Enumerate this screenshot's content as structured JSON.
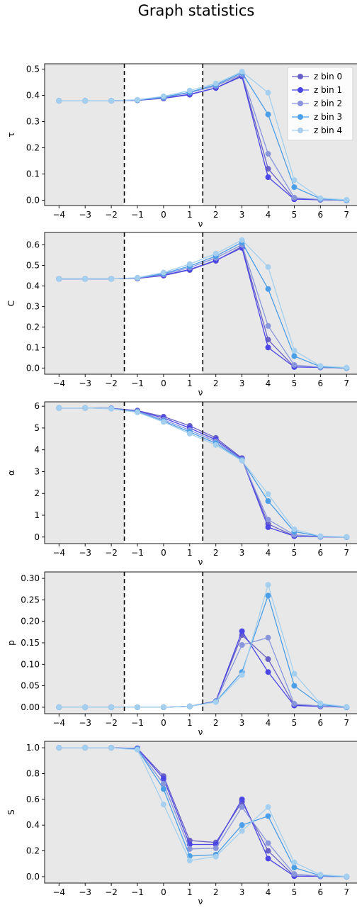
{
  "title": "Graph statistics",
  "chart_data": [
    {
      "type": "line",
      "ylabel": "τ",
      "xlabel": "ν",
      "x": [
        -4,
        -3,
        -2,
        -1,
        0,
        1,
        2,
        3,
        4,
        5,
        6,
        7
      ],
      "xticks": [
        "−4",
        "−3",
        "−2",
        "−1",
        "0",
        "1",
        "2",
        "3",
        "4",
        "5",
        "6",
        "7"
      ],
      "ylim": [
        -0.02,
        0.52
      ],
      "yticks": [
        0.0,
        0.1,
        0.2,
        0.3,
        0.4,
        0.5
      ],
      "ytick_labels": [
        "0.0",
        "0.1",
        "0.2",
        "0.3",
        "0.4",
        "0.5"
      ],
      "legend": "top-right",
      "series": [
        {
          "name": "z bin 0",
          "values": [
            0.379,
            0.379,
            0.379,
            0.381,
            0.388,
            0.402,
            0.428,
            0.476,
            0.12,
            0.005,
            0.002,
            0.0
          ]
        },
        {
          "name": "z bin 1",
          "values": [
            0.379,
            0.379,
            0.379,
            0.381,
            0.389,
            0.404,
            0.428,
            0.472,
            0.088,
            0.004,
            0.002,
            0.0
          ]
        },
        {
          "name": "z bin 2",
          "values": [
            0.379,
            0.379,
            0.379,
            0.382,
            0.391,
            0.41,
            0.436,
            0.48,
            0.177,
            0.01,
            0.003,
            0.0
          ]
        },
        {
          "name": "z bin 3",
          "values": [
            0.379,
            0.379,
            0.379,
            0.382,
            0.393,
            0.412,
            0.44,
            0.486,
            0.327,
            0.05,
            0.006,
            0.0
          ]
        },
        {
          "name": "z bin 4",
          "values": [
            0.379,
            0.379,
            0.379,
            0.383,
            0.396,
            0.418,
            0.445,
            0.49,
            0.41,
            0.077,
            0.008,
            0.002
          ]
        }
      ]
    },
    {
      "type": "line",
      "ylabel": "C",
      "xlabel": "ν",
      "x": [
        -4,
        -3,
        -2,
        -1,
        0,
        1,
        2,
        3,
        4,
        5,
        6,
        7
      ],
      "xticks": [
        "−4",
        "−3",
        "−2",
        "−1",
        "0",
        "1",
        "2",
        "3",
        "4",
        "5",
        "6",
        "7"
      ],
      "ylim": [
        -0.03,
        0.66
      ],
      "yticks": [
        0.0,
        0.1,
        0.2,
        0.3,
        0.4,
        0.5,
        0.6
      ],
      "ytick_labels": [
        "0.0",
        "0.1",
        "0.2",
        "0.3",
        "0.4",
        "0.5",
        "0.6"
      ],
      "series": [
        {
          "name": "z bin 0",
          "values": [
            0.434,
            0.434,
            0.434,
            0.436,
            0.45,
            0.477,
            0.522,
            0.592,
            0.138,
            0.006,
            0.003,
            0.0
          ]
        },
        {
          "name": "z bin 1",
          "values": [
            0.434,
            0.434,
            0.434,
            0.437,
            0.452,
            0.48,
            0.524,
            0.585,
            0.1,
            0.005,
            0.003,
            0.0
          ]
        },
        {
          "name": "z bin 2",
          "values": [
            0.434,
            0.434,
            0.434,
            0.438,
            0.456,
            0.489,
            0.536,
            0.6,
            0.205,
            0.015,
            0.004,
            0.0
          ]
        },
        {
          "name": "z bin 3",
          "values": [
            0.434,
            0.434,
            0.434,
            0.439,
            0.46,
            0.496,
            0.545,
            0.612,
            0.385,
            0.058,
            0.007,
            0.0
          ]
        },
        {
          "name": "z bin 4",
          "values": [
            0.434,
            0.434,
            0.434,
            0.44,
            0.465,
            0.506,
            0.557,
            0.623,
            0.492,
            0.085,
            0.01,
            0.002
          ]
        }
      ]
    },
    {
      "type": "line",
      "ylabel": "α",
      "xlabel": "ν",
      "x": [
        -4,
        -3,
        -2,
        -1,
        0,
        1,
        2,
        3,
        4,
        5,
        6,
        7
      ],
      "xticks": [
        "−4",
        "−3",
        "−2",
        "−1",
        "0",
        "1",
        "2",
        "3",
        "4",
        "5",
        "6",
        "7"
      ],
      "ylim": [
        -0.3,
        6.2
      ],
      "yticks": [
        0,
        1,
        2,
        3,
        4,
        5,
        6
      ],
      "ytick_labels": [
        "0",
        "1",
        "2",
        "3",
        "4",
        "5",
        "6"
      ],
      "series": [
        {
          "name": "z bin 0",
          "values": [
            5.92,
            5.92,
            5.9,
            5.8,
            5.52,
            5.1,
            4.55,
            3.62,
            0.6,
            0.05,
            0.01,
            0.0
          ]
        },
        {
          "name": "z bin 1",
          "values": [
            5.92,
            5.92,
            5.9,
            5.78,
            5.46,
            5.0,
            4.46,
            3.58,
            0.45,
            0.04,
            0.01,
            0.0
          ]
        },
        {
          "name": "z bin 2",
          "values": [
            5.92,
            5.92,
            5.89,
            5.76,
            5.38,
            4.9,
            4.38,
            3.55,
            0.8,
            0.1,
            0.02,
            0.0
          ]
        },
        {
          "name": "z bin 3",
          "values": [
            5.92,
            5.92,
            5.89,
            5.74,
            5.32,
            4.82,
            4.3,
            3.52,
            1.65,
            0.25,
            0.03,
            0.0
          ]
        },
        {
          "name": "z bin 4",
          "values": [
            5.92,
            5.92,
            5.88,
            5.72,
            5.28,
            4.74,
            4.22,
            3.5,
            1.97,
            0.35,
            0.04,
            0.01
          ]
        }
      ]
    },
    {
      "type": "line",
      "ylabel": "p",
      "xlabel": "ν",
      "x": [
        -4,
        -3,
        -2,
        -1,
        0,
        1,
        2,
        3,
        4,
        5,
        6,
        7
      ],
      "xticks": [
        "−4",
        "−3",
        "−2",
        "−1",
        "0",
        "1",
        "2",
        "3",
        "4",
        "5",
        "6",
        "7"
      ],
      "ylim": [
        -0.015,
        0.315
      ],
      "yticks": [
        0.0,
        0.05,
        0.1,
        0.15,
        0.2,
        0.25,
        0.3
      ],
      "ytick_labels": [
        "0.00",
        "0.05",
        "0.10",
        "0.15",
        "0.20",
        "0.25",
        "0.30"
      ],
      "series": [
        {
          "name": "z bin 0",
          "values": [
            0.0,
            0.0,
            0.0,
            0.0,
            0.0,
            0.002,
            0.014,
            0.168,
            0.112,
            0.005,
            0.002,
            0.0
          ]
        },
        {
          "name": "z bin 1",
          "values": [
            0.0,
            0.0,
            0.0,
            0.0,
            0.0,
            0.002,
            0.014,
            0.177,
            0.082,
            0.004,
            0.002,
            0.0
          ]
        },
        {
          "name": "z bin 2",
          "values": [
            0.0,
            0.0,
            0.0,
            0.0,
            0.0,
            0.002,
            0.013,
            0.145,
            0.162,
            0.008,
            0.003,
            0.0
          ]
        },
        {
          "name": "z bin 3",
          "values": [
            0.0,
            0.0,
            0.0,
            0.0,
            0.0,
            0.002,
            0.013,
            0.082,
            0.26,
            0.05,
            0.006,
            0.0
          ]
        },
        {
          "name": "z bin 4",
          "values": [
            0.0,
            0.0,
            0.0,
            0.0,
            0.0,
            0.002,
            0.012,
            0.075,
            0.285,
            0.078,
            0.009,
            0.001
          ]
        }
      ]
    },
    {
      "type": "line",
      "ylabel": "S",
      "xlabel": "ν",
      "x": [
        -4,
        -3,
        -2,
        -1,
        0,
        1,
        2,
        3,
        4,
        5,
        6,
        7
      ],
      "xticks": [
        "−4",
        "−3",
        "−2",
        "−1",
        "0",
        "1",
        "2",
        "3",
        "4",
        "5",
        "6",
        "7"
      ],
      "ylim": [
        -0.05,
        1.05
      ],
      "yticks": [
        0.0,
        0.2,
        0.4,
        0.6,
        0.8,
        1.0
      ],
      "ytick_labels": [
        "0.0",
        "0.2",
        "0.4",
        "0.6",
        "0.8",
        "1.0"
      ],
      "series": [
        {
          "name": "z bin 0",
          "values": [
            1.0,
            1.0,
            1.0,
            0.995,
            0.78,
            0.28,
            0.265,
            0.58,
            0.2,
            0.005,
            0.003,
            0.0
          ]
        },
        {
          "name": "z bin 1",
          "values": [
            1.0,
            1.0,
            1.0,
            0.995,
            0.76,
            0.25,
            0.25,
            0.6,
            0.14,
            0.004,
            0.002,
            0.0
          ]
        },
        {
          "name": "z bin 2",
          "values": [
            1.0,
            1.0,
            1.0,
            0.99,
            0.72,
            0.215,
            0.22,
            0.54,
            0.26,
            0.02,
            0.004,
            0.0
          ]
        },
        {
          "name": "z bin 3",
          "values": [
            1.0,
            1.0,
            1.0,
            0.99,
            0.68,
            0.16,
            0.17,
            0.4,
            0.47,
            0.07,
            0.008,
            0.0
          ]
        },
        {
          "name": "z bin 4",
          "values": [
            1.0,
            1.0,
            1.0,
            0.985,
            0.56,
            0.125,
            0.155,
            0.355,
            0.54,
            0.11,
            0.015,
            0.002
          ]
        }
      ]
    }
  ],
  "colors": {
    "z bin 0": "#6a61c8",
    "z bin 1": "#4c46e6",
    "z bin 2": "#8a96dc",
    "z bin 3": "#4b9ee8",
    "z bin 4": "#a4cfee",
    "shaded": "#e8e8e8"
  }
}
